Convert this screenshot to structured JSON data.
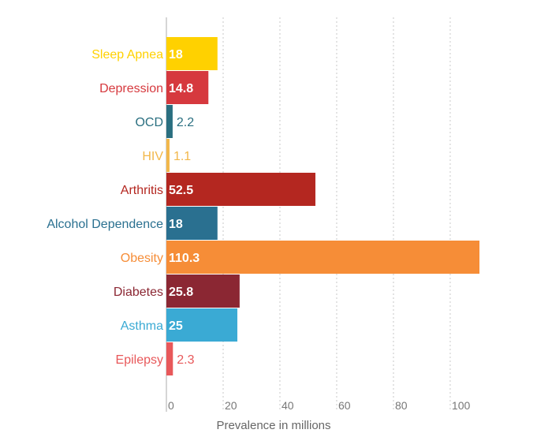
{
  "chart_data": {
    "type": "bar",
    "orientation": "horizontal",
    "title": "",
    "xlabel": "Prevalence in millions",
    "ylabel": "",
    "xlim": [
      0,
      110.3
    ],
    "xticks": [
      0,
      20,
      40,
      60,
      80,
      100
    ],
    "grid": "vertical dotted",
    "categories": [
      "Sleep Apnea",
      "Depression",
      "OCD",
      "HIV",
      "Arthritis",
      "Alcohol Dependence",
      "Obesity",
      "Diabetes",
      "Asthma",
      "Epilepsy"
    ],
    "values": [
      18,
      14.8,
      2.2,
      1.1,
      52.5,
      18,
      110.3,
      25.8,
      25,
      2.3
    ],
    "value_labels": [
      "18",
      "14.8",
      "2.2",
      "1.1",
      "52.5",
      "18",
      "110.3",
      "25.8",
      "25",
      "2.3"
    ],
    "colors": [
      "#ffd100",
      "#d6393e",
      "#2a6f80",
      "#f2b74a",
      "#b42720",
      "#2a7090",
      "#f68d37",
      "#8b2733",
      "#3aaad4",
      "#e8585a"
    ]
  }
}
